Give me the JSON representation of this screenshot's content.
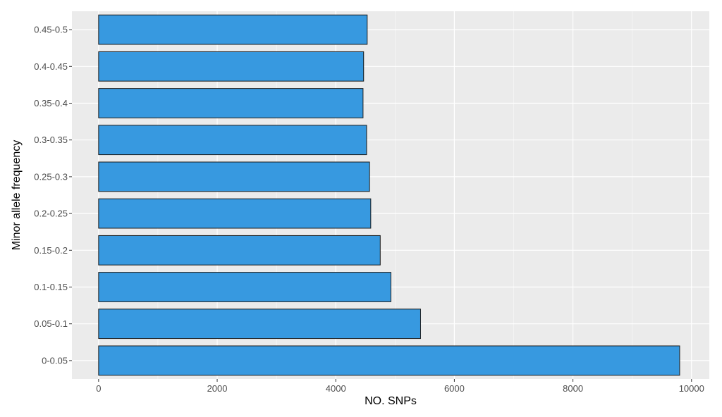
{
  "chart_data": {
    "type": "bar",
    "orientation": "horizontal",
    "categories": [
      "0-0.05",
      "0.05-0.1",
      "0.1-0.15",
      "0.15-0.2",
      "0.2-0.25",
      "0.25-0.3",
      "0.3-0.35",
      "0.35-0.4",
      "0.4-0.45",
      "0.45-0.5"
    ],
    "values": [
      9800,
      5430,
      4930,
      4750,
      4590,
      4570,
      4520,
      4460,
      4470,
      4530
    ],
    "title": "",
    "xlabel": "NO. SNPs",
    "ylabel": "Minor allele frequency",
    "xlim": [
      -450,
      10300
    ],
    "xticks": [
      0,
      2000,
      4000,
      6000,
      8000,
      10000
    ],
    "xtick_labels": [
      "0",
      "2000",
      "4000",
      "6000",
      "8000",
      "10000"
    ],
    "grid": true,
    "colors": {
      "bar_fill": "#3799E0",
      "bar_stroke": "#1a1a1a",
      "panel_background": "#EBEBEB",
      "grid_major": "#FFFFFF",
      "tick_color": "#333333"
    }
  }
}
